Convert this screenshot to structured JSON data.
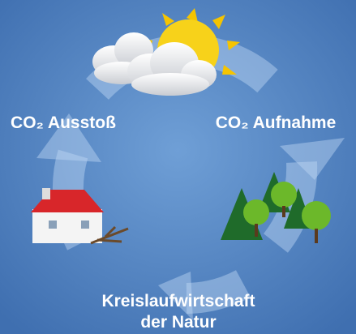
{
  "labels": {
    "emission": "CO₂ Ausstoß",
    "absorption": "CO₂ Aufnahme"
  },
  "caption": {
    "lines": [
      "Kreislaufwirtschaft",
      "der Natur"
    ]
  }
}
